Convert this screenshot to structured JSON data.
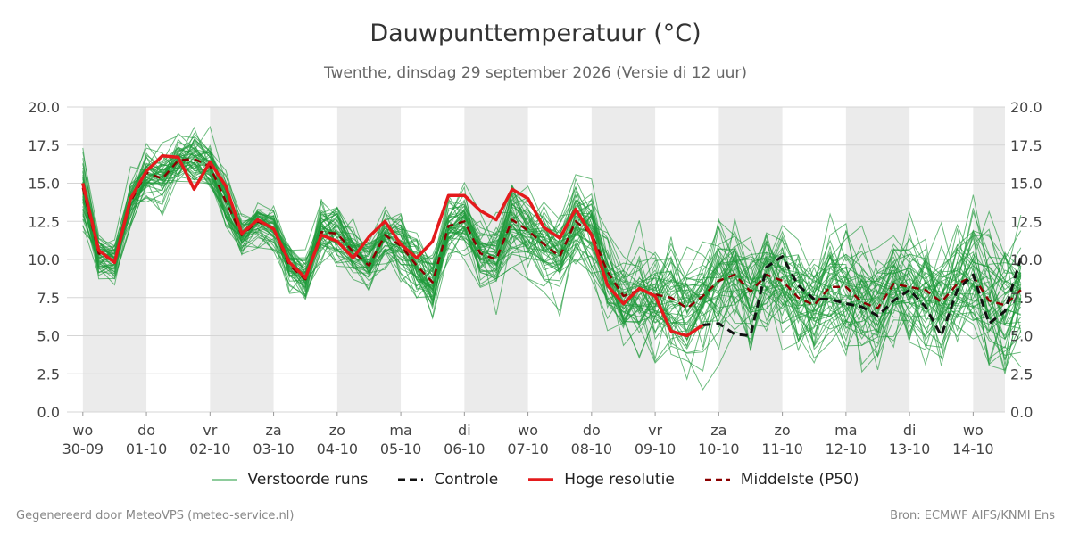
{
  "chart_data": {
    "type": "line",
    "title": "Dauwpunttemperatuur (°C)",
    "subtitle": "Twenthe, dinsdag 29 september 2026 (Versie di 12 uur)",
    "ylim": [
      0,
      20
    ],
    "y_ticks": [
      "0.0",
      "2.5",
      "5.0",
      "7.5",
      "10.0",
      "12.5",
      "15.0",
      "17.5",
      "20.0"
    ],
    "x_range_days": [
      -0.25,
      14.5
    ],
    "grid": "horizontal",
    "legend_position": "bottom",
    "x_ticks": [
      {
        "day": "wo",
        "date": "30-09"
      },
      {
        "day": "do",
        "date": "01-10"
      },
      {
        "day": "vr",
        "date": "02-10"
      },
      {
        "day": "za",
        "date": "03-10"
      },
      {
        "day": "zo",
        "date": "04-10"
      },
      {
        "day": "ma",
        "date": "05-10"
      },
      {
        "day": "di",
        "date": "06-10"
      },
      {
        "day": "wo",
        "date": "07-10"
      },
      {
        "day": "do",
        "date": "08-10"
      },
      {
        "day": "vr",
        "date": "09-10"
      },
      {
        "day": "za",
        "date": "10-10"
      },
      {
        "day": "zo",
        "date": "11-10"
      },
      {
        "day": "ma",
        "date": "12-10"
      },
      {
        "day": "di",
        "date": "13-10"
      },
      {
        "day": "wo",
        "date": "14-10"
      }
    ],
    "weekend_shading": "alternating days shaded grey",
    "time_step_hours": 6,
    "series": [
      {
        "name": "Hoge resolutie",
        "color": "#e41a1c",
        "style": "solid",
        "values": [
          15.0,
          10.6,
          9.8,
          14.0,
          15.8,
          16.8,
          16.7,
          14.6,
          16.4,
          14.8,
          11.7,
          12.6,
          12.0,
          9.8,
          8.8,
          11.6,
          11.2,
          10.1,
          11.5,
          12.5,
          11.0,
          10.1,
          11.2,
          14.2,
          14.2,
          13.2,
          12.6,
          14.6,
          14.0,
          12.1,
          11.4,
          13.3,
          11.6,
          8.3,
          7.1,
          8.1,
          7.6,
          5.3,
          5.0,
          5.7
        ]
      },
      {
        "name": "Controle",
        "color": "#111111",
        "style": "dashed",
        "values": [
          null,
          null,
          null,
          null,
          null,
          null,
          null,
          null,
          null,
          null,
          null,
          null,
          null,
          null,
          null,
          null,
          null,
          null,
          null,
          null,
          null,
          null,
          null,
          null,
          null,
          null,
          null,
          null,
          null,
          null,
          null,
          null,
          null,
          null,
          null,
          null,
          null,
          null,
          null,
          5.7,
          5.8,
          5.1,
          5.0,
          9.5,
          10.2,
          8.3,
          7.4,
          7.4,
          7.1,
          6.9,
          6.3,
          7.3,
          8.0,
          6.9,
          5.0,
          8.0,
          9.0,
          5.8,
          6.6,
          10.1
        ]
      },
      {
        "name": "Middelste (P50)",
        "color": "#8b0000",
        "style": "dashed",
        "values": [
          14.7,
          10.4,
          9.9,
          13.8,
          15.7,
          15.3,
          16.5,
          16.6,
          16.1,
          13.8,
          11.6,
          12.5,
          12.0,
          9.6,
          8.7,
          11.8,
          11.7,
          10.5,
          9.6,
          11.6,
          10.9,
          9.6,
          8.5,
          12.2,
          12.5,
          10.4,
          10.0,
          12.6,
          11.9,
          11.0,
          10.2,
          12.5,
          11.7,
          9.2,
          7.6,
          8.0,
          7.7,
          7.5,
          6.8,
          7.6,
          8.6,
          9.0,
          7.9,
          9.0,
          8.6,
          7.5,
          7.0,
          8.2,
          8.2,
          7.2,
          6.8,
          8.4,
          8.2,
          8.0,
          7.2,
          8.4,
          8.9,
          7.3,
          7.0,
          8.0
        ]
      }
    ],
    "ensemble": {
      "name": "Verstoorde runs",
      "color": "#1e9a3a",
      "members": 50,
      "spread": [
        3.4,
        1.8,
        1.6,
        1.7,
        2.0,
        2.2,
        2.1,
        2.2,
        2.0,
        2.1,
        1.9,
        1.8,
        1.6,
        1.9,
        2.0,
        2.4,
        2.2,
        2.1,
        2.3,
        2.3,
        2.4,
        2.4,
        2.6,
        2.6,
        2.7,
        2.8,
        2.9,
        3.0,
        3.2,
        3.4,
        3.6,
        3.6,
        3.7,
        3.8,
        3.6,
        3.9,
        4.0,
        4.2,
        4.1,
        4.3,
        4.5,
        4.4,
        4.6,
        4.7,
        4.6,
        4.7,
        4.8,
        4.6,
        4.7,
        4.8,
        4.8,
        4.9,
        4.9,
        4.8,
        4.9,
        5.0,
        5.0,
        5.1,
        5.0,
        5.1
      ]
    }
  },
  "legend": {
    "ensemble": "Verstoorde runs",
    "control": "Controle",
    "hires": "Hoge resolutie",
    "median": "Middelste (P50)"
  },
  "footer": {
    "left": "Gegenereerd door MeteoVPS (meteo-service.nl)",
    "right": "Bron: ECMWF AIFS/KNMI Ens"
  }
}
